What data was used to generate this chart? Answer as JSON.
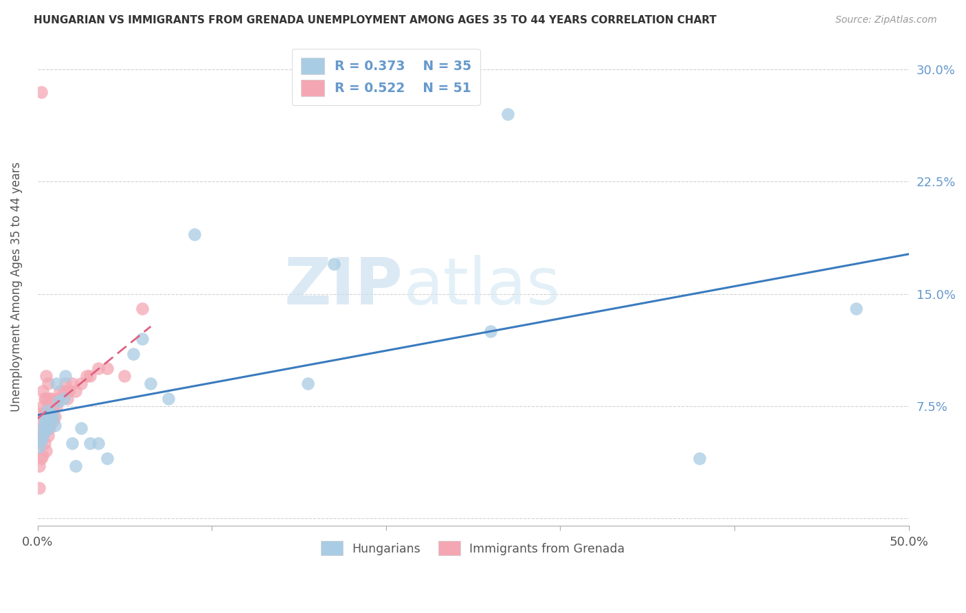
{
  "title": "HUNGARIAN VS IMMIGRANTS FROM GRENADA UNEMPLOYMENT AMONG AGES 35 TO 44 YEARS CORRELATION CHART",
  "source": "Source: ZipAtlas.com",
  "ylabel": "Unemployment Among Ages 35 to 44 years",
  "xlim": [
    0.0,
    0.5
  ],
  "ylim": [
    -0.005,
    0.315
  ],
  "hungarian_R": 0.373,
  "hungarian_N": 35,
  "grenada_R": 0.522,
  "grenada_N": 51,
  "blue_color": "#a8cce4",
  "pink_color": "#f4a7b3",
  "blue_line_color": "#3a7bbf",
  "pink_line_color": "#e06080",
  "tick_label_color": "#6699cc",
  "legend_label1": "Hungarians",
  "legend_label2": "Immigrants from Grenada",
  "watermark_zip": "ZIP",
  "watermark_atlas": "atlas",
  "hun_x": [
    0.001,
    0.002,
    0.003,
    0.003,
    0.004,
    0.004,
    0.005,
    0.005,
    0.006,
    0.006,
    0.007,
    0.008,
    0.009,
    0.01,
    0.011,
    0.012,
    0.015,
    0.016,
    0.02,
    0.022,
    0.025,
    0.03,
    0.035,
    0.04,
    0.055,
    0.06,
    0.065,
    0.075,
    0.09,
    0.155,
    0.17,
    0.26,
    0.27,
    0.38,
    0.47
  ],
  "hun_y": [
    0.048,
    0.052,
    0.055,
    0.06,
    0.058,
    0.065,
    0.063,
    0.068,
    0.06,
    0.072,
    0.065,
    0.07,
    0.068,
    0.062,
    0.09,
    0.078,
    0.08,
    0.095,
    0.05,
    0.035,
    0.06,
    0.05,
    0.05,
    0.04,
    0.11,
    0.12,
    0.09,
    0.08,
    0.19,
    0.09,
    0.17,
    0.125,
    0.27,
    0.04,
    0.14
  ],
  "gren_x": [
    0.001,
    0.001,
    0.001,
    0.002,
    0.002,
    0.002,
    0.002,
    0.003,
    0.003,
    0.003,
    0.003,
    0.003,
    0.004,
    0.004,
    0.004,
    0.004,
    0.005,
    0.005,
    0.005,
    0.005,
    0.005,
    0.006,
    0.006,
    0.006,
    0.006,
    0.007,
    0.007,
    0.007,
    0.008,
    0.008,
    0.009,
    0.009,
    0.01,
    0.01,
    0.011,
    0.012,
    0.013,
    0.015,
    0.016,
    0.017,
    0.018,
    0.02,
    0.022,
    0.025,
    0.028,
    0.03,
    0.035,
    0.04,
    0.05,
    0.06,
    0.002
  ],
  "gren_y": [
    0.02,
    0.035,
    0.05,
    0.04,
    0.055,
    0.06,
    0.07,
    0.042,
    0.055,
    0.065,
    0.075,
    0.085,
    0.05,
    0.06,
    0.07,
    0.08,
    0.045,
    0.06,
    0.07,
    0.08,
    0.095,
    0.055,
    0.065,
    0.075,
    0.09,
    0.06,
    0.07,
    0.08,
    0.07,
    0.08,
    0.065,
    0.075,
    0.068,
    0.078,
    0.075,
    0.08,
    0.085,
    0.085,
    0.09,
    0.08,
    0.085,
    0.09,
    0.085,
    0.09,
    0.095,
    0.095,
    0.1,
    0.1,
    0.095,
    0.14,
    0.285
  ]
}
